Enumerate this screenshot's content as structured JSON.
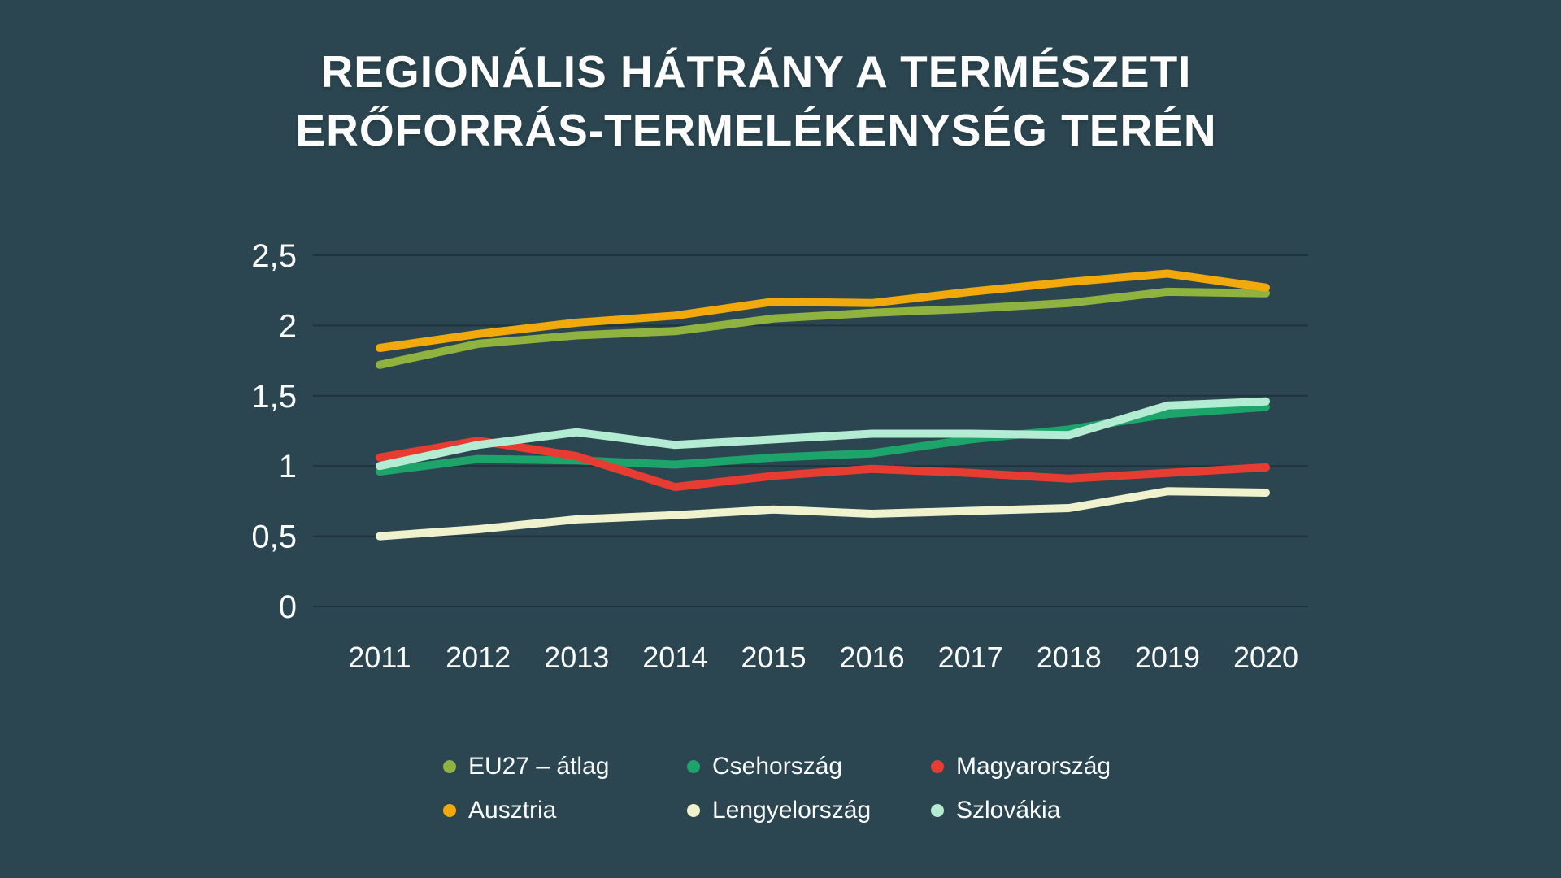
{
  "title": {
    "line1": "REGIONÁLIS HÁTRÁNY A TERMÉSZETI",
    "line2": "ERŐFORRÁS-TERMELÉKENYSÉG TERÉN"
  },
  "colors": {
    "background": "#2B4650",
    "gridline": "#1E333C",
    "text": "#FAFBFB"
  },
  "chart_data": {
    "type": "line",
    "x": [
      "2011",
      "2012",
      "2013",
      "2014",
      "2015",
      "2016",
      "2017",
      "2018",
      "2019",
      "2020"
    ],
    "y_ticks": [
      0,
      0.5,
      1,
      1.5,
      2,
      2.5
    ],
    "y_tick_labels": [
      "0",
      "0,5",
      "1",
      "1,5",
      "2",
      "2,5"
    ],
    "ylim": [
      0,
      2.5
    ],
    "grid": "horizontal-only",
    "legend_position": "bottom",
    "series": [
      {
        "key": "eu27-atlag",
        "name": "EU27 – átlag",
        "color": "#90B23E",
        "values": [
          1.72,
          1.87,
          1.93,
          1.96,
          2.05,
          2.09,
          2.12,
          2.16,
          2.24,
          2.23
        ]
      },
      {
        "key": "csehorszag",
        "name": "Csehország",
        "color": "#1CA46B",
        "values": [
          0.96,
          1.05,
          1.04,
          1.01,
          1.06,
          1.09,
          1.19,
          1.26,
          1.37,
          1.42
        ]
      },
      {
        "key": "magyarorszag",
        "name": "Magyarország",
        "color": "#E73C31",
        "values": [
          1.06,
          1.18,
          1.07,
          0.85,
          0.93,
          0.98,
          0.95,
          0.91,
          0.95,
          0.99
        ]
      },
      {
        "key": "ausztria",
        "name": "Ausztria",
        "color": "#F1A90B",
        "values": [
          1.84,
          1.94,
          2.02,
          2.07,
          2.17,
          2.16,
          2.24,
          2.31,
          2.37,
          2.27
        ]
      },
      {
        "key": "lengyelorszag",
        "name": "Lengyelország",
        "color": "#EFF2CC",
        "values": [
          0.5,
          0.55,
          0.62,
          0.65,
          0.69,
          0.66,
          0.68,
          0.7,
          0.82,
          0.81
        ]
      },
      {
        "key": "szlovakia",
        "name": "Szlovákia",
        "color": "#B4EBD3",
        "values": [
          1.0,
          1.15,
          1.24,
          1.15,
          1.19,
          1.23,
          1.23,
          1.22,
          1.43,
          1.46
        ]
      }
    ]
  }
}
